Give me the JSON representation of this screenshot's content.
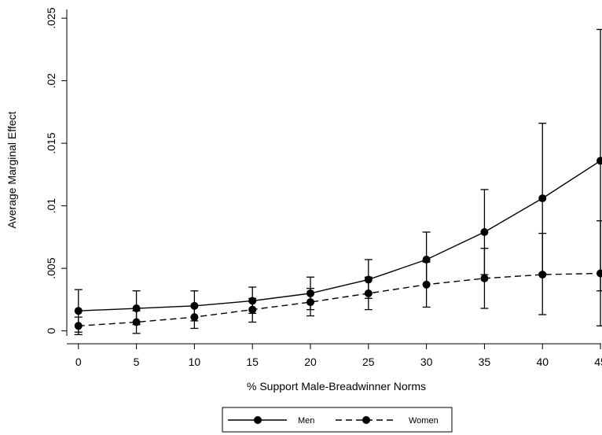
{
  "chart_data": {
    "type": "line",
    "xlabel": "% Support Male-Breadwinner Norms",
    "ylabel": "Average Marginal Effect",
    "x": [
      0,
      5,
      10,
      15,
      20,
      25,
      30,
      35,
      40,
      45
    ],
    "xticks": [
      "0",
      "5",
      "10",
      "15",
      "20",
      "25",
      "30",
      "35",
      "40",
      "45"
    ],
    "yticks": [
      {
        "value": 0,
        "label": "0"
      },
      {
        "value": 0.005,
        "label": ".005"
      },
      {
        "value": 0.01,
        "label": ".01"
      },
      {
        "value": 0.015,
        "label": ".015"
      },
      {
        "value": 0.02,
        "label": ".02"
      },
      {
        "value": 0.025,
        "label": ".025"
      }
    ],
    "xlim": [
      -1.0,
      45.2
    ],
    "ylim": [
      -0.0004,
      0.0257
    ],
    "grid": false,
    "legend_position": "bottom",
    "series": [
      {
        "name": "Men",
        "line_style": "solid",
        "color": "#000000",
        "values": [
          0.0016,
          0.0018,
          0.002,
          0.0024,
          0.003,
          0.0041,
          0.0057,
          0.0079,
          0.0106,
          0.0136
        ],
        "ci_low": [
          -0.0001,
          0.0005,
          0.0008,
          0.0014,
          0.0017,
          0.0026,
          0.0037,
          0.0045,
          0.0046,
          0.0032
        ],
        "ci_high": [
          0.0033,
          0.0032,
          0.0032,
          0.0035,
          0.0043,
          0.0057,
          0.0079,
          0.0113,
          0.0166,
          0.0241
        ]
      },
      {
        "name": "Women",
        "line_style": "dashed",
        "color": "#000000",
        "values": [
          0.0004,
          0.0007,
          0.0011,
          0.0017,
          0.0023,
          0.003,
          0.0037,
          0.0042,
          0.0045,
          0.0046
        ],
        "ci_low": [
          -0.0003,
          -0.0002,
          0.0002,
          0.0007,
          0.0012,
          0.0017,
          0.0019,
          0.0018,
          0.0013,
          0.0004
        ],
        "ci_high": [
          0.0011,
          0.0016,
          0.002,
          0.0026,
          0.0034,
          0.0043,
          0.0055,
          0.0066,
          0.0078,
          0.0088
        ]
      }
    ]
  }
}
